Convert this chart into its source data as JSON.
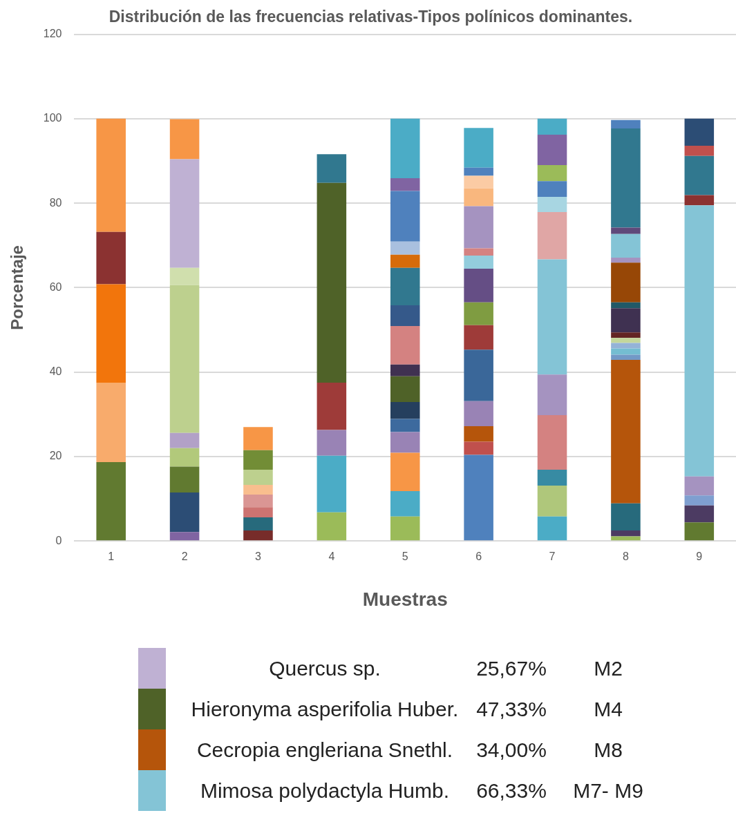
{
  "chart_data": {
    "type": "bar",
    "stacked": true,
    "title": "Distribución de las frecuencias relativas-Tipos polínicos dominantes.",
    "xlabel": "Muestras",
    "ylabel": "Porcentaje",
    "categories": [
      "1",
      "2",
      "3",
      "4",
      "5",
      "6",
      "7",
      "8",
      "9"
    ],
    "ylim": [
      0,
      120
    ],
    "yticks": [
      0,
      20,
      40,
      60,
      80,
      100,
      120
    ],
    "grid": "y",
    "legend": false,
    "series": [
      {
        "values": [
          18.7,
          2.1,
          2.5,
          6.8,
          5.8,
          20.4,
          5.8,
          1.1,
          4.4
        ],
        "colors": [
          "#617a30",
          "#8064a2",
          "#772c2a",
          "#9bbb59",
          "#9bbb59",
          "#4f81bd",
          "#4bacc6",
          "#9bbb59",
          "#617a30"
        ]
      },
      {
        "values": [
          18.8,
          9.4,
          3.1,
          13.4,
          6.0,
          3.1,
          7.3,
          1.4,
          4.0
        ],
        "colors": [
          "#f8ab6c",
          "#2c4d75",
          "#276a7c",
          "#4bacc6",
          "#4bacc6",
          "#c0504d",
          "#afc77b",
          "#4c3b62",
          "#4c3b62"
        ]
      },
      {
        "values": [
          23.3,
          6.1,
          2.4,
          6.1,
          9.1,
          3.7,
          3.8,
          6.4,
          2.4
        ],
        "colors": [
          "#f2750c",
          "#617a30",
          "#cd7371",
          "#9983b5",
          "#f79646",
          "#b5550b",
          "#378ba3",
          "#276a7c",
          "#7f9fd0"
        ]
      },
      {
        "values": [
          12.4,
          4.4,
          3.0,
          11.2,
          4.9,
          5.9,
          12.9,
          34.0,
          4.5
        ],
        "colors": [
          "#8b3231",
          "#b2c97b",
          "#da9694",
          "#9e3b39",
          "#9983b5",
          "#9983b5",
          "#d48281",
          "#b5550b",
          "#a593c0"
        ]
      },
      {
        "values": [
          26.8,
          3.6,
          2.3,
          47.3,
          3.1,
          12.2,
          9.6,
          1.2,
          64.2
        ],
        "colors": [
          "#f79646",
          "#b2a1c7",
          "#f9be8e",
          "#4f6228",
          "#3d6a9e",
          "#3a6799",
          "#a593c0",
          "#7299c6",
          "#84c4d6"
        ]
      },
      {
        "values": [
          null,
          35.0,
          3.6,
          6.8,
          4.0,
          5.8,
          27.3,
          1.5,
          2.4
        ],
        "colors": [
          null,
          "#bdd08e",
          "#bdd08e",
          "#31788f",
          "#253f5e",
          "#9e3b39",
          "#84c4d6",
          "#74bdd1",
          "#8b3231"
        ]
      },
      {
        "values": [
          null,
          4.1,
          4.6,
          null,
          6.1,
          5.4,
          11.2,
          1.3,
          9.3
        ],
        "colors": [
          null,
          "#d0dfad",
          "#728d36",
          null,
          "#4f6228",
          "#7f9c41",
          "#e0a6a5",
          "#94b3d7",
          "#31788f"
        ]
      },
      {
        "values": [
          null,
          25.7,
          5.5,
          null,
          2.8,
          8.0,
          3.6,
          1.2,
          2.4
        ],
        "colors": [
          null,
          "#bfb1d3",
          "#f79646",
          null,
          "#403151",
          "#654e85",
          "#a8d6e2",
          "#c4d79b",
          "#c0504d"
        ]
      },
      {
        "values": [
          null,
          9.5,
          null,
          null,
          9.1,
          3.1,
          3.7,
          1.3,
          6.4
        ],
        "colors": [
          null,
          "#f79646",
          null,
          null,
          "#d48281",
          "#93cddd",
          "#4f81bd",
          "#632523",
          "#2c4d75"
        ]
      },
      {
        "values": [
          null,
          null,
          null,
          null,
          4.9,
          1.7,
          3.8,
          5.7,
          null
        ],
        "colors": [
          null,
          null,
          null,
          null,
          "#35598a",
          "#d48281",
          "#9bbb59",
          "#3f3151",
          null
        ]
      },
      {
        "values": [
          null,
          null,
          null,
          null,
          8.9,
          10.0,
          7.2,
          1.4,
          null
        ],
        "colors": [
          null,
          null,
          null,
          null,
          "#31788f",
          "#a593c0",
          "#8064a2",
          "#215967",
          null
        ]
      },
      {
        "values": [
          null,
          null,
          null,
          null,
          3.1,
          4.2,
          3.8,
          9.4,
          null
        ],
        "colors": [
          null,
          null,
          null,
          null,
          "#d66b0a",
          "#f9b77e",
          "#4bacc6",
          "#974706",
          null
        ]
      },
      {
        "values": [
          null,
          null,
          null,
          null,
          3.1,
          3.0,
          null,
          1.2,
          null
        ],
        "colors": [
          null,
          null,
          null,
          null,
          "#a9c0df",
          "#fbcba4",
          null,
          "#a593c0",
          null
        ]
      },
      {
        "values": [
          null,
          null,
          null,
          null,
          12.0,
          1.9,
          null,
          5.6,
          null
        ],
        "colors": [
          null,
          null,
          null,
          null,
          "#4f81bd",
          "#4f81bd",
          null,
          "#84c4d6",
          null
        ]
      },
      {
        "values": [
          null,
          null,
          null,
          null,
          3.0,
          9.4,
          null,
          1.5,
          null
        ],
        "colors": [
          null,
          null,
          null,
          null,
          "#8064a2",
          "#4bacc6",
          null,
          "#5f497a",
          null
        ]
      },
      {
        "values": [
          null,
          null,
          null,
          null,
          14.1,
          null,
          null,
          23.5,
          null
        ],
        "colors": [
          null,
          null,
          null,
          null,
          "#4bacc6",
          null,
          null,
          "#31788f",
          null
        ]
      },
      {
        "values": [
          null,
          null,
          null,
          null,
          null,
          null,
          null,
          2.0,
          null
        ],
        "colors": [
          null,
          null,
          null,
          null,
          null,
          null,
          null,
          "#4f81bd",
          null
        ]
      }
    ],
    "annotations": [
      "Quercus sp.",
      "25,67%",
      "M2",
      "Hieronyma asperifolia Huber.",
      "47,33%",
      "M4",
      "Cecropia engleriana Snethl.",
      "34,00%",
      "M8",
      "Mimosa polydactyla Humb.",
      "66,33%",
      "M7- M9"
    ]
  }
}
